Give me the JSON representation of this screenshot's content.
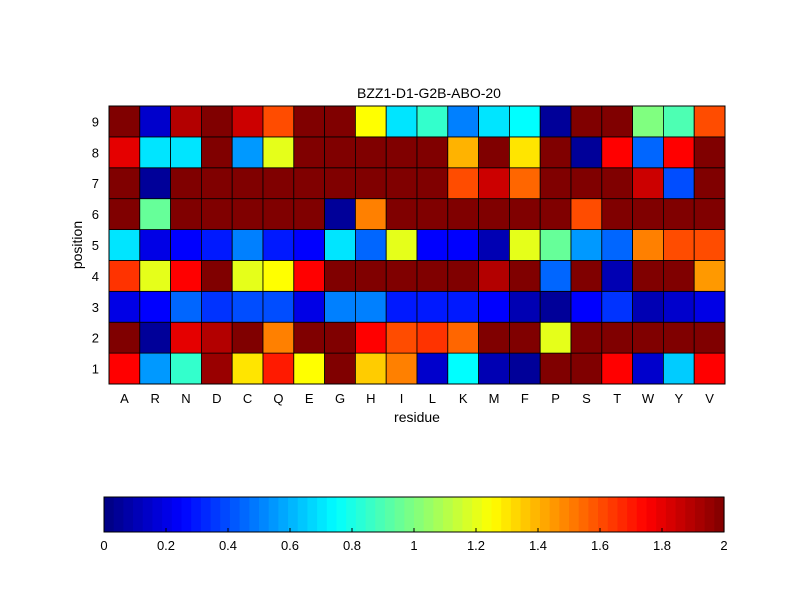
{
  "chart_data": {
    "type": "heatmap",
    "title": "BZZ1-D1-G2B-ABO-20",
    "xlabel": "residue",
    "ylabel": "position",
    "x_categories": [
      "A",
      "R",
      "N",
      "D",
      "C",
      "Q",
      "E",
      "G",
      "H",
      "I",
      "L",
      "K",
      "M",
      "F",
      "P",
      "S",
      "T",
      "W",
      "Y",
      "V"
    ],
    "y_categories": [
      "1",
      "2",
      "3",
      "4",
      "5",
      "6",
      "7",
      "8",
      "9"
    ],
    "grid": true,
    "colormap": "jet",
    "clim": [
      0,
      2
    ],
    "colorbar": {
      "orientation": "horizontal",
      "placement": "bottom",
      "tick_labels": [
        "0",
        "0.2",
        "0.4",
        "0.6",
        "0.8",
        "1",
        "1.2",
        "1.4",
        "1.6",
        "1.8",
        "2"
      ],
      "ticks": [
        0,
        0.2,
        0.4,
        0.6,
        0.8,
        1,
        1.2,
        1.4,
        1.6,
        1.8,
        2
      ]
    },
    "values": [
      [
        1.75,
        0.55,
        0.85,
        1.95,
        1.3,
        1.7,
        1.25,
        2.0,
        1.35,
        1.5,
        0.15,
        0.75,
        0.1,
        0.05,
        2.0,
        2.0,
        1.75,
        0.15,
        0.65,
        1.75
      ],
      [
        2.0,
        0.05,
        1.8,
        1.9,
        2.0,
        1.5,
        2.0,
        2.0,
        1.75,
        1.6,
        1.65,
        1.55,
        2.0,
        2.0,
        1.2,
        2.0,
        2.0,
        2.0,
        2.0,
        2.0
      ],
      [
        0.2,
        0.25,
        0.45,
        0.35,
        0.4,
        0.4,
        0.2,
        0.5,
        0.5,
        0.3,
        0.3,
        0.3,
        0.25,
        0.1,
        0.05,
        0.25,
        0.35,
        0.1,
        0.15,
        0.2
      ],
      [
        1.65,
        1.2,
        1.75,
        2.0,
        1.2,
        1.25,
        1.75,
        2.0,
        2.0,
        2.0,
        2.0,
        2.0,
        1.9,
        2.0,
        0.45,
        2.0,
        0.1,
        2.0,
        2.0,
        1.45
      ],
      [
        0.7,
        0.2,
        0.25,
        0.3,
        0.5,
        0.3,
        0.25,
        0.7,
        0.45,
        1.2,
        0.25,
        0.25,
        0.1,
        1.2,
        0.95,
        0.55,
        0.45,
        1.5,
        1.6,
        1.6
      ],
      [
        2.0,
        0.95,
        2.0,
        2.0,
        2.0,
        2.0,
        2.0,
        0.05,
        1.5,
        2.0,
        2.0,
        2.0,
        2.0,
        2.0,
        2.0,
        1.6,
        2.0,
        2.0,
        2.0,
        2.0
      ],
      [
        2.0,
        0.05,
        2.0,
        2.0,
        2.0,
        2.0,
        2.0,
        2.0,
        2.0,
        2.0,
        2.0,
        1.6,
        1.85,
        1.55,
        2.0,
        2.0,
        2.0,
        1.85,
        0.4,
        2.0
      ],
      [
        1.8,
        0.7,
        0.7,
        2.0,
        0.55,
        1.2,
        2.0,
        2.0,
        2.0,
        2.0,
        2.0,
        1.4,
        2.0,
        1.3,
        2.0,
        0.05,
        1.75,
        0.45,
        1.75,
        2.0
      ],
      [
        2.0,
        0.15,
        1.9,
        2.0,
        1.85,
        1.6,
        2.0,
        2.0,
        1.25,
        0.7,
        0.85,
        0.5,
        0.7,
        0.75,
        0.05,
        2.0,
        2.0,
        1.0,
        0.9,
        1.6
      ]
    ]
  }
}
